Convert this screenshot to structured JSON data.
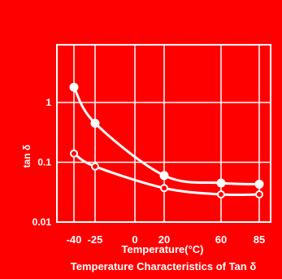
{
  "chart_data": {
    "type": "line",
    "title": "Temperature Characteristics of Tan δ",
    "xlabel": "Temperature(°C)",
    "ylabel": "tan δ",
    "x_ticks": [
      -40,
      -25,
      0,
      20,
      60,
      85
    ],
    "x_tick_labels": [
      "-40",
      "-25",
      "0",
      "20",
      "60",
      "85"
    ],
    "y_ticks": [
      0.01,
      0.1,
      1
    ],
    "y_tick_labels": [
      "0.01",
      "0.1",
      "1"
    ],
    "xlim": [
      -40,
      85
    ],
    "ylim": [
      0.01,
      5
    ],
    "y_scale": "log",
    "grid": true,
    "series": [
      {
        "marker": "filled-circle",
        "x": [
          -40,
          -25,
          20,
          60,
          85
        ],
        "y": [
          1.8,
          0.45,
          0.06,
          0.045,
          0.043
        ]
      },
      {
        "marker": "open-circle",
        "x": [
          -40,
          -25,
          20,
          60,
          85
        ],
        "y": [
          0.14,
          0.085,
          0.037,
          0.029,
          0.029
        ]
      }
    ],
    "colors": {
      "background": "#ff0000",
      "foreground": "#ffffff"
    }
  }
}
